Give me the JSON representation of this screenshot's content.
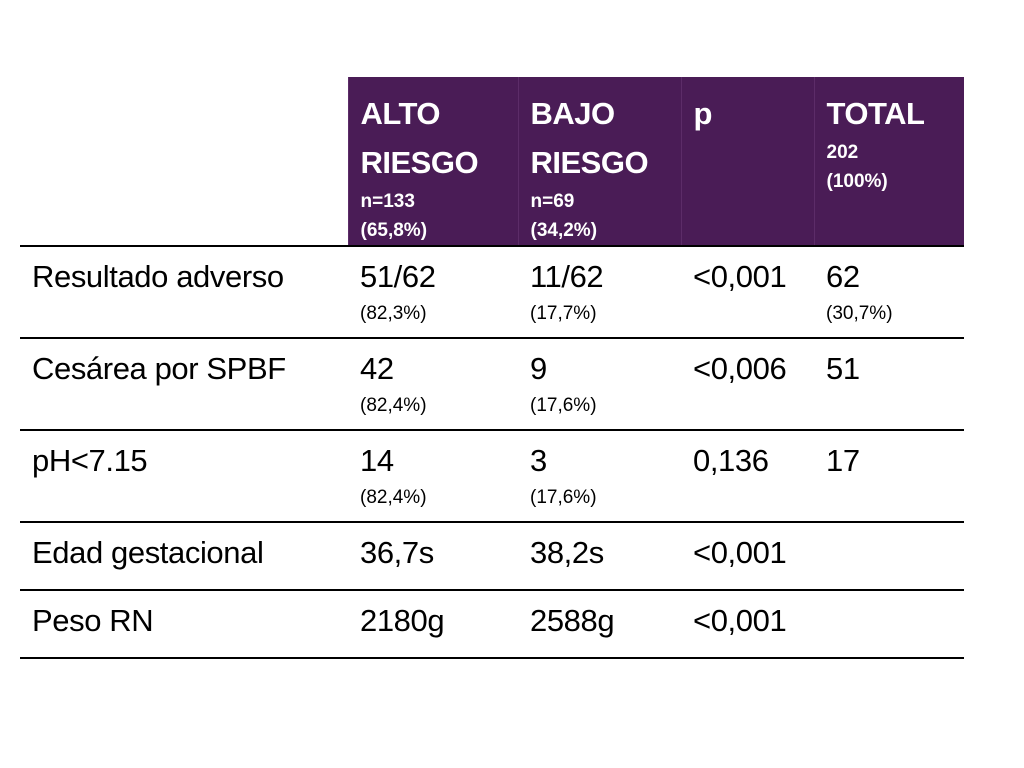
{
  "table": {
    "headers": [
      {
        "main_line1": "ALTO",
        "main_line2": "RIESGO",
        "sub_line1": "n=133",
        "sub_line2": "(65,8%)"
      },
      {
        "main_line1": "BAJO",
        "main_line2": "RIESGO",
        "sub_line1": "n=69",
        "sub_line2": "(34,2%)"
      },
      {
        "main_line1": "p",
        "main_line2": "",
        "sub_line1": "",
        "sub_line2": ""
      },
      {
        "main_line1": "TOTAL",
        "main_line2": "",
        "sub_line1": "202",
        "sub_line2": "(100%)"
      }
    ],
    "rows": [
      {
        "label": "Resultado adverso",
        "cells": [
          {
            "main": "51/62",
            "sub": "(82,3%)"
          },
          {
            "main": "11/62",
            "sub": "(17,7%)"
          },
          {
            "main": "<0,001",
            "sub": ""
          },
          {
            "main": "62",
            "sub": "(30,7%)"
          }
        ]
      },
      {
        "label": "Cesárea por SPBF",
        "cells": [
          {
            "main": "42",
            "sub": "(82,4%)"
          },
          {
            "main": "9",
            "sub": "(17,6%)"
          },
          {
            "main": "<0,006",
            "sub": ""
          },
          {
            "main": "51",
            "sub": ""
          }
        ]
      },
      {
        "label": "pH<7.15",
        "cells": [
          {
            "main": "14",
            "sub": "(82,4%)"
          },
          {
            "main": "3",
            "sub": "(17,6%)"
          },
          {
            "main": "0,136",
            "sub": ""
          },
          {
            "main": "17",
            "sub": ""
          }
        ]
      },
      {
        "label": "Edad gestacional",
        "cells": [
          {
            "main": "36,7s",
            "sub": ""
          },
          {
            "main": "38,2s",
            "sub": ""
          },
          {
            "main": "<0,001",
            "sub": ""
          },
          {
            "main": "",
            "sub": ""
          }
        ]
      },
      {
        "label": "Peso RN",
        "cells": [
          {
            "main": "2180g",
            "sub": ""
          },
          {
            "main": "2588g",
            "sub": ""
          },
          {
            "main": "<0,001",
            "sub": ""
          },
          {
            "main": "",
            "sub": ""
          }
        ]
      }
    ]
  },
  "colors": {
    "header_background": "#4a1c56",
    "header_text": "#ffffff",
    "rule": "#000000"
  }
}
